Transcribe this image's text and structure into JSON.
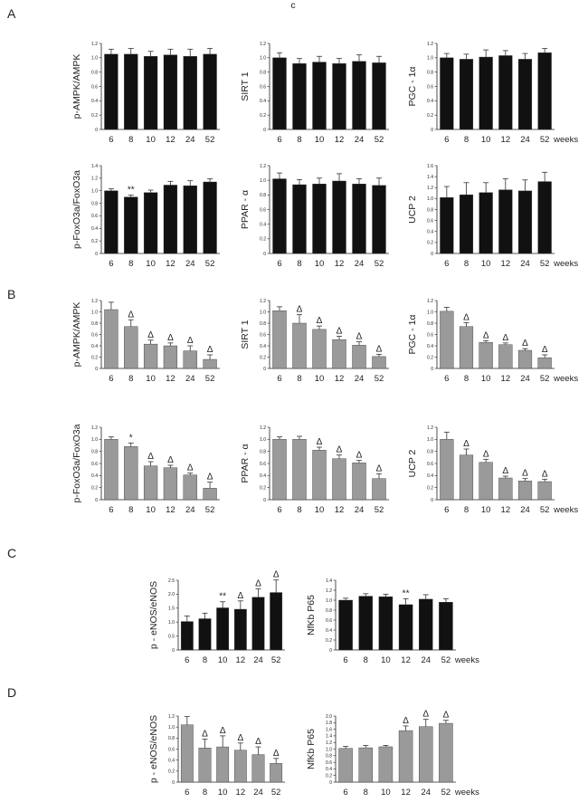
{
  "header_glyph": "c",
  "panel_labels": [
    "A",
    "B",
    "C",
    "D"
  ],
  "chart_data": [
    {
      "panel": "A",
      "type": "bar",
      "color": "#111111",
      "ylabel": "p-AMPK/AMPK",
      "categories": [
        "6",
        "8",
        "10",
        "12",
        "24",
        "52"
      ],
      "values": [
        1.05,
        1.05,
        1.02,
        1.04,
        1.02,
        1.05
      ],
      "errors": [
        0.07,
        0.08,
        0.07,
        0.08,
        0.1,
        0.08
      ],
      "marks": [
        "",
        "",
        "",
        "",
        "",
        ""
      ],
      "ylim": [
        0,
        1.2
      ],
      "yticks": [
        "0",
        "0.2",
        "0.4",
        "0.6",
        "0.8",
        "1.0",
        "1.2"
      ]
    },
    {
      "panel": "A",
      "type": "bar",
      "color": "#111111",
      "ylabel": "SIRT 1",
      "categories": [
        "6",
        "8",
        "10",
        "12",
        "24",
        "52"
      ],
      "values": [
        1.0,
        0.92,
        0.94,
        0.92,
        0.95,
        0.93
      ],
      "errors": [
        0.07,
        0.07,
        0.08,
        0.07,
        0.09,
        0.09
      ],
      "marks": [
        "",
        "",
        "",
        "",
        "",
        ""
      ],
      "ylim": [
        0,
        1.2
      ],
      "yticks": [
        "0",
        "0.2",
        "0.4",
        "0.6",
        "0.8",
        "1.0",
        "1.2"
      ]
    },
    {
      "panel": "A",
      "type": "bar",
      "color": "#111111",
      "ylabel": "PGC - 1α",
      "categories": [
        "6",
        "8",
        "10",
        "12",
        "24",
        "52"
      ],
      "values": [
        1.0,
        0.98,
        1.01,
        1.03,
        0.98,
        1.07
      ],
      "errors": [
        0.06,
        0.07,
        0.1,
        0.07,
        0.08,
        0.06
      ],
      "marks": [
        "",
        "",
        "",
        "",
        "",
        ""
      ],
      "ylim": [
        0,
        1.2
      ],
      "yticks": [
        "0",
        "0.2",
        "0.4",
        "0.6",
        "0.8",
        "1.0",
        "1.2"
      ],
      "xunit": "weeks"
    },
    {
      "panel": "A",
      "type": "bar",
      "color": "#111111",
      "ylabel": "p-FoxO3a/FoxO3a",
      "categories": [
        "6",
        "8",
        "10",
        "12",
        "24",
        "52"
      ],
      "values": [
        1.0,
        0.9,
        0.97,
        1.09,
        1.08,
        1.14
      ],
      "errors": [
        0.03,
        0.03,
        0.04,
        0.06,
        0.08,
        0.05
      ],
      "marks": [
        "",
        "**",
        "",
        "",
        "",
        ""
      ],
      "ylim": [
        0,
        1.4
      ],
      "yticks": [
        "0",
        "0.2",
        "0.4",
        "0.6",
        "0.8",
        "1.0",
        "1.2",
        "1.4"
      ]
    },
    {
      "panel": "A",
      "type": "bar",
      "color": "#111111",
      "ylabel": "PPAR - α",
      "categories": [
        "6",
        "8",
        "10",
        "12",
        "24",
        "52"
      ],
      "values": [
        1.02,
        0.94,
        0.95,
        0.99,
        0.95,
        0.93
      ],
      "errors": [
        0.08,
        0.07,
        0.08,
        0.1,
        0.07,
        0.1
      ],
      "marks": [
        "",
        "",
        "",
        "",
        "",
        ""
      ],
      "ylim": [
        0,
        1.2
      ],
      "yticks": [
        "0",
        "0.2",
        "0.4",
        "0.6",
        "0.8",
        "1.0",
        "1.2"
      ]
    },
    {
      "panel": "A",
      "type": "bar",
      "color": "#111111",
      "ylabel": "UCP 2",
      "categories": [
        "6",
        "8",
        "10",
        "12",
        "24",
        "52"
      ],
      "values": [
        1.02,
        1.07,
        1.11,
        1.16,
        1.14,
        1.31
      ],
      "errors": [
        0.2,
        0.22,
        0.18,
        0.2,
        0.2,
        0.17
      ],
      "marks": [
        "",
        "",
        "",
        "",
        "",
        ""
      ],
      "ylim": [
        0,
        1.6
      ],
      "yticks": [
        "0",
        "0.2",
        "0.4",
        "0.6",
        "0.8",
        "1.0",
        "1.2",
        "1.4",
        "1.6"
      ],
      "xunit": "weeks"
    },
    {
      "panel": "B",
      "type": "bar",
      "color": "#9a9a9a",
      "ylabel": "p-AMPK/AMPK",
      "categories": [
        "6",
        "8",
        "10",
        "12",
        "24",
        "52"
      ],
      "values": [
        1.04,
        0.74,
        0.43,
        0.4,
        0.31,
        0.16
      ],
      "errors": [
        0.13,
        0.12,
        0.07,
        0.05,
        0.09,
        0.08
      ],
      "marks": [
        "",
        "Δ",
        "Δ",
        "Δ",
        "Δ",
        "Δ"
      ],
      "ylim": [
        0,
        1.2
      ],
      "yticks": [
        "0",
        "0.2",
        "0.4",
        "0.6",
        "0.8",
        "1.0",
        "1.2"
      ]
    },
    {
      "panel": "B",
      "type": "bar",
      "color": "#9a9a9a",
      "ylabel": "SIRT 1",
      "categories": [
        "6",
        "8",
        "10",
        "12",
        "24",
        "52"
      ],
      "values": [
        1.02,
        0.8,
        0.69,
        0.51,
        0.41,
        0.21
      ],
      "errors": [
        0.07,
        0.15,
        0.06,
        0.06,
        0.06,
        0.04
      ],
      "marks": [
        "",
        "Δ",
        "Δ",
        "Δ",
        "Δ",
        "Δ"
      ],
      "ylim": [
        0,
        1.2
      ],
      "yticks": [
        "0",
        "0.2",
        "0.4",
        "0.6",
        "0.8",
        "1.0",
        "1.2"
      ]
    },
    {
      "panel": "B",
      "type": "bar",
      "color": "#9a9a9a",
      "ylabel": "PGC - 1α",
      "categories": [
        "6",
        "8",
        "10",
        "12",
        "24",
        "52"
      ],
      "values": [
        1.01,
        0.74,
        0.46,
        0.42,
        0.32,
        0.19
      ],
      "errors": [
        0.07,
        0.07,
        0.03,
        0.03,
        0.03,
        0.05
      ],
      "marks": [
        "",
        "Δ",
        "Δ",
        "Δ",
        "Δ",
        "Δ"
      ],
      "ylim": [
        0,
        1.2
      ],
      "yticks": [
        "0",
        "0.2",
        "0.4",
        "0.6",
        "0.8",
        "1.0",
        "1.2"
      ],
      "xunit": "weeks"
    },
    {
      "panel": "B",
      "type": "bar",
      "color": "#9a9a9a",
      "ylabel": "p-FoxO3a/FoxO3a",
      "categories": [
        "6",
        "8",
        "10",
        "12",
        "24",
        "52"
      ],
      "values": [
        1.0,
        0.88,
        0.56,
        0.53,
        0.41,
        0.19
      ],
      "errors": [
        0.04,
        0.06,
        0.07,
        0.04,
        0.03,
        0.1
      ],
      "marks": [
        "",
        "*",
        "Δ",
        "Δ",
        "Δ",
        "Δ"
      ],
      "ylim": [
        0,
        1.2
      ],
      "yticks": [
        "0",
        "0.2",
        "0.4",
        "0.6",
        "0.8",
        "1.0",
        "1.2"
      ]
    },
    {
      "panel": "B",
      "type": "bar",
      "color": "#9a9a9a",
      "ylabel": "PPAR - α",
      "categories": [
        "6",
        "8",
        "10",
        "12",
        "24",
        "52"
      ],
      "values": [
        1.0,
        1.0,
        0.82,
        0.68,
        0.61,
        0.35
      ],
      "errors": [
        0.04,
        0.05,
        0.05,
        0.06,
        0.04,
        0.08
      ],
      "marks": [
        "",
        "",
        "Δ",
        "Δ",
        "Δ",
        "Δ"
      ],
      "ylim": [
        0,
        1.2
      ],
      "yticks": [
        "0",
        "0.2",
        "0.4",
        "0.6",
        "0.8",
        "1.0",
        "1.2"
      ]
    },
    {
      "panel": "B",
      "type": "bar",
      "color": "#9a9a9a",
      "ylabel": "UCP 2",
      "categories": [
        "6",
        "8",
        "10",
        "12",
        "24",
        "52"
      ],
      "values": [
        1.0,
        0.74,
        0.62,
        0.36,
        0.31,
        0.3
      ],
      "errors": [
        0.12,
        0.1,
        0.05,
        0.03,
        0.04,
        0.04
      ],
      "marks": [
        "",
        "Δ",
        "Δ",
        "Δ",
        "Δ",
        "Δ"
      ],
      "ylim": [
        0,
        1.2
      ],
      "yticks": [
        "0",
        "0.2",
        "0.4",
        "0.6",
        "0.8",
        "1.0",
        "1.2"
      ],
      "xunit": "weeks"
    },
    {
      "panel": "C",
      "type": "bar",
      "color": "#111111",
      "ylabel": "p - eNOS/eNOS",
      "categories": [
        "6",
        "8",
        "10",
        "12",
        "24",
        "52"
      ],
      "values": [
        1.02,
        1.12,
        1.51,
        1.46,
        1.89,
        2.06
      ],
      "errors": [
        0.2,
        0.2,
        0.22,
        0.3,
        0.3,
        0.45
      ],
      "marks": [
        "",
        "",
        "**",
        "Δ",
        "Δ",
        "Δ"
      ],
      "ylim": [
        0,
        2.5
      ],
      "yticks": [
        "0",
        "0.5",
        "1.0",
        "1.5",
        "2.0",
        "2.5"
      ]
    },
    {
      "panel": "C",
      "type": "bar",
      "color": "#111111",
      "ylabel": "NfKb P65",
      "categories": [
        "6",
        "8",
        "10",
        "12",
        "24",
        "52"
      ],
      "values": [
        1.0,
        1.08,
        1.07,
        0.91,
        1.02,
        0.96
      ],
      "errors": [
        0.04,
        0.05,
        0.05,
        0.12,
        0.09,
        0.07
      ],
      "marks": [
        "",
        "",
        "",
        "**",
        "",
        ""
      ],
      "ylim": [
        0,
        1.4
      ],
      "yticks": [
        "0",
        "0.2",
        "0.4",
        "0.6",
        "0.8",
        "1.0",
        "1.2",
        "1.4"
      ],
      "xunit": "weeks"
    },
    {
      "panel": "D",
      "type": "bar",
      "color": "#9a9a9a",
      "ylabel": "p - eNOS/eNOS",
      "categories": [
        "6",
        "8",
        "10",
        "12",
        "24",
        "52"
      ],
      "values": [
        1.04,
        0.62,
        0.64,
        0.58,
        0.5,
        0.34
      ],
      "errors": [
        0.15,
        0.16,
        0.2,
        0.13,
        0.14,
        0.09
      ],
      "marks": [
        "",
        "Δ",
        "Δ",
        "Δ",
        "Δ",
        "Δ"
      ],
      "ylim": [
        0,
        1.2
      ],
      "yticks": [
        "0",
        "0.2",
        "0.4",
        "0.6",
        "0.8",
        "1.0",
        "1.2"
      ]
    },
    {
      "panel": "D",
      "type": "bar",
      "color": "#9a9a9a",
      "ylabel": "NfKb P65",
      "categories": [
        "6",
        "8",
        "10",
        "12",
        "24",
        "52"
      ],
      "values": [
        1.02,
        1.04,
        1.07,
        1.56,
        1.68,
        1.78
      ],
      "errors": [
        0.06,
        0.07,
        0.04,
        0.14,
        0.22,
        0.09
      ],
      "marks": [
        "",
        "",
        "",
        "Δ",
        "Δ",
        "Δ"
      ],
      "ylim": [
        0,
        2.0
      ],
      "yticks": [
        "0",
        "0.2",
        "0.4",
        "0.6",
        "0.8",
        "1.0",
        "1.2",
        "1.4",
        "1.6",
        "1.8",
        "2.0"
      ],
      "xunit": "weeks"
    }
  ]
}
